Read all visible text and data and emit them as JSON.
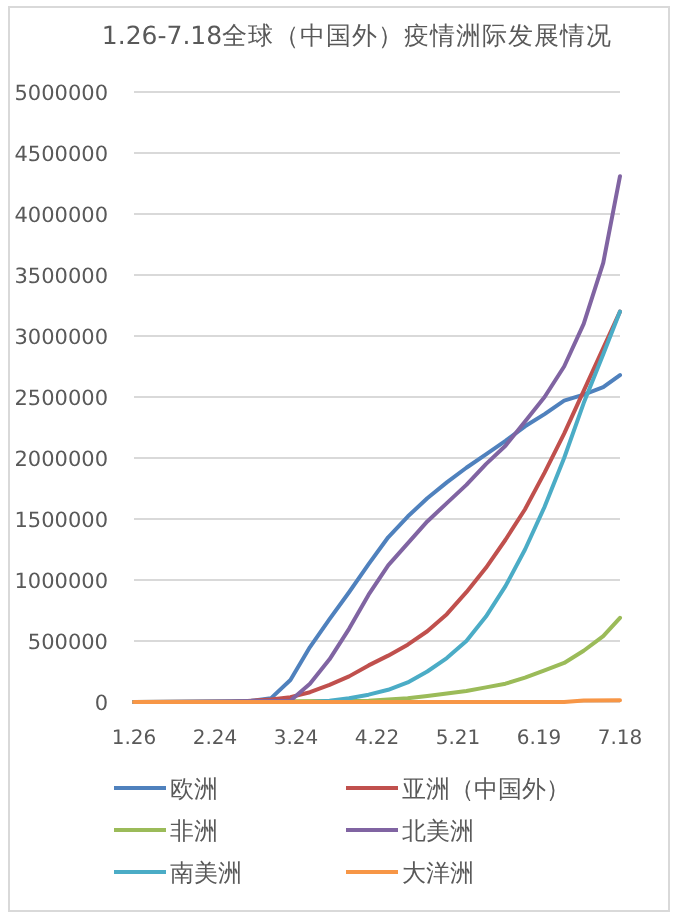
{
  "chart_data": {
    "type": "line",
    "title": "1.26-7.18全球（中国外）疫情洲际发展情况",
    "xlim": [
      "--01-26",
      "--07-18"
    ],
    "xticks": [
      {
        "value": "--01-26",
        "label": "1.26"
      },
      {
        "value": "--02-24",
        "label": "2.24"
      },
      {
        "value": "--03-24",
        "label": "3.24"
      },
      {
        "value": "--04-22",
        "label": "4.22"
      },
      {
        "value": "--05-21",
        "label": "5.21"
      },
      {
        "value": "--06-19",
        "label": "6.19"
      },
      {
        "value": "--07-18",
        "label": "7.18"
      }
    ],
    "ylim": [
      0,
      5000000
    ],
    "yticks": [
      0,
      500000,
      1000000,
      1500000,
      2000000,
      2500000,
      3000000,
      3500000,
      4000000,
      4500000,
      5000000
    ],
    "grid": "y",
    "legend": "bottom",
    "marker": "none",
    "line_style": "solid",
    "series": [
      {
        "name": "欧洲",
        "color": "#4f81bd",
        "x": [
          "--01-26",
          "--03-01",
          "--03-08",
          "--03-15",
          "--03-22",
          "--03-29",
          "--04-05",
          "--04-12",
          "--04-19",
          "--04-26",
          "--05-03",
          "--05-10",
          "--05-17",
          "--05-24",
          "--05-31",
          "--06-07",
          "--06-14",
          "--06-21",
          "--06-28",
          "--07-05",
          "--07-12",
          "--07-18"
        ],
        "values": [
          0,
          0,
          10000,
          30000,
          180000,
          450000,
          680000,
          900000,
          1130000,
          1350000,
          1520000,
          1670000,
          1800000,
          1920000,
          2030000,
          2140000,
          2260000,
          2360000,
          2470000,
          2520000,
          2580000,
          2680000
        ]
      },
      {
        "name": "亚洲（中国外）",
        "color": "#c0504d",
        "x": [
          "--01-26",
          "--03-01",
          "--03-08",
          "--03-15",
          "--03-22",
          "--03-29",
          "--04-05",
          "--04-12",
          "--04-19",
          "--04-26",
          "--05-03",
          "--05-10",
          "--05-17",
          "--05-24",
          "--05-31",
          "--06-07",
          "--06-14",
          "--06-21",
          "--06-28",
          "--07-05",
          "--07-12",
          "--07-18"
        ],
        "values": [
          0,
          0,
          10000,
          20000,
          40000,
          80000,
          140000,
          210000,
          300000,
          380000,
          470000,
          580000,
          720000,
          900000,
          1100000,
          1330000,
          1580000,
          1880000,
          2200000,
          2550000,
          2900000,
          3200000
        ]
      },
      {
        "name": "非洲",
        "color": "#9bbb59",
        "x": [
          "--01-26",
          "--04-19",
          "--04-26",
          "--05-03",
          "--05-10",
          "--05-17",
          "--05-24",
          "--05-31",
          "--06-07",
          "--06-14",
          "--06-21",
          "--06-28",
          "--07-05",
          "--07-12",
          "--07-18"
        ],
        "values": [
          0,
          10000,
          20000,
          30000,
          50000,
          70000,
          90000,
          120000,
          150000,
          200000,
          260000,
          320000,
          420000,
          540000,
          690000
        ]
      },
      {
        "name": "北美洲",
        "color": "#8064a2",
        "x": [
          "--01-26",
          "--03-22",
          "--03-29",
          "--04-05",
          "--04-12",
          "--04-19",
          "--04-26",
          "--05-03",
          "--05-10",
          "--05-17",
          "--05-24",
          "--05-31",
          "--06-07",
          "--06-14",
          "--06-21",
          "--06-28",
          "--07-05",
          "--07-12",
          "--07-18"
        ],
        "values": [
          0,
          10000,
          150000,
          350000,
          600000,
          880000,
          1120000,
          1300000,
          1480000,
          1630000,
          1780000,
          1950000,
          2100000,
          2300000,
          2500000,
          2750000,
          3100000,
          3600000,
          4310000
        ]
      },
      {
        "name": "南美洲",
        "color": "#4bacc6",
        "x": [
          "--01-26",
          "--03-29",
          "--04-05",
          "--04-12",
          "--04-19",
          "--04-26",
          "--05-03",
          "--05-10",
          "--05-17",
          "--05-24",
          "--05-31",
          "--06-07",
          "--06-14",
          "--06-21",
          "--06-28",
          "--07-05",
          "--07-12",
          "--07-18"
        ],
        "values": [
          0,
          0,
          10000,
          30000,
          60000,
          100000,
          160000,
          250000,
          360000,
          500000,
          700000,
          950000,
          1250000,
          1600000,
          2000000,
          2450000,
          2850000,
          3200000
        ]
      },
      {
        "name": "大洋洲",
        "color": "#f79646",
        "x": [
          "--01-26",
          "--06-28",
          "--07-05",
          "--07-18"
        ],
        "values": [
          0,
          0,
          13000,
          15000
        ]
      }
    ]
  }
}
